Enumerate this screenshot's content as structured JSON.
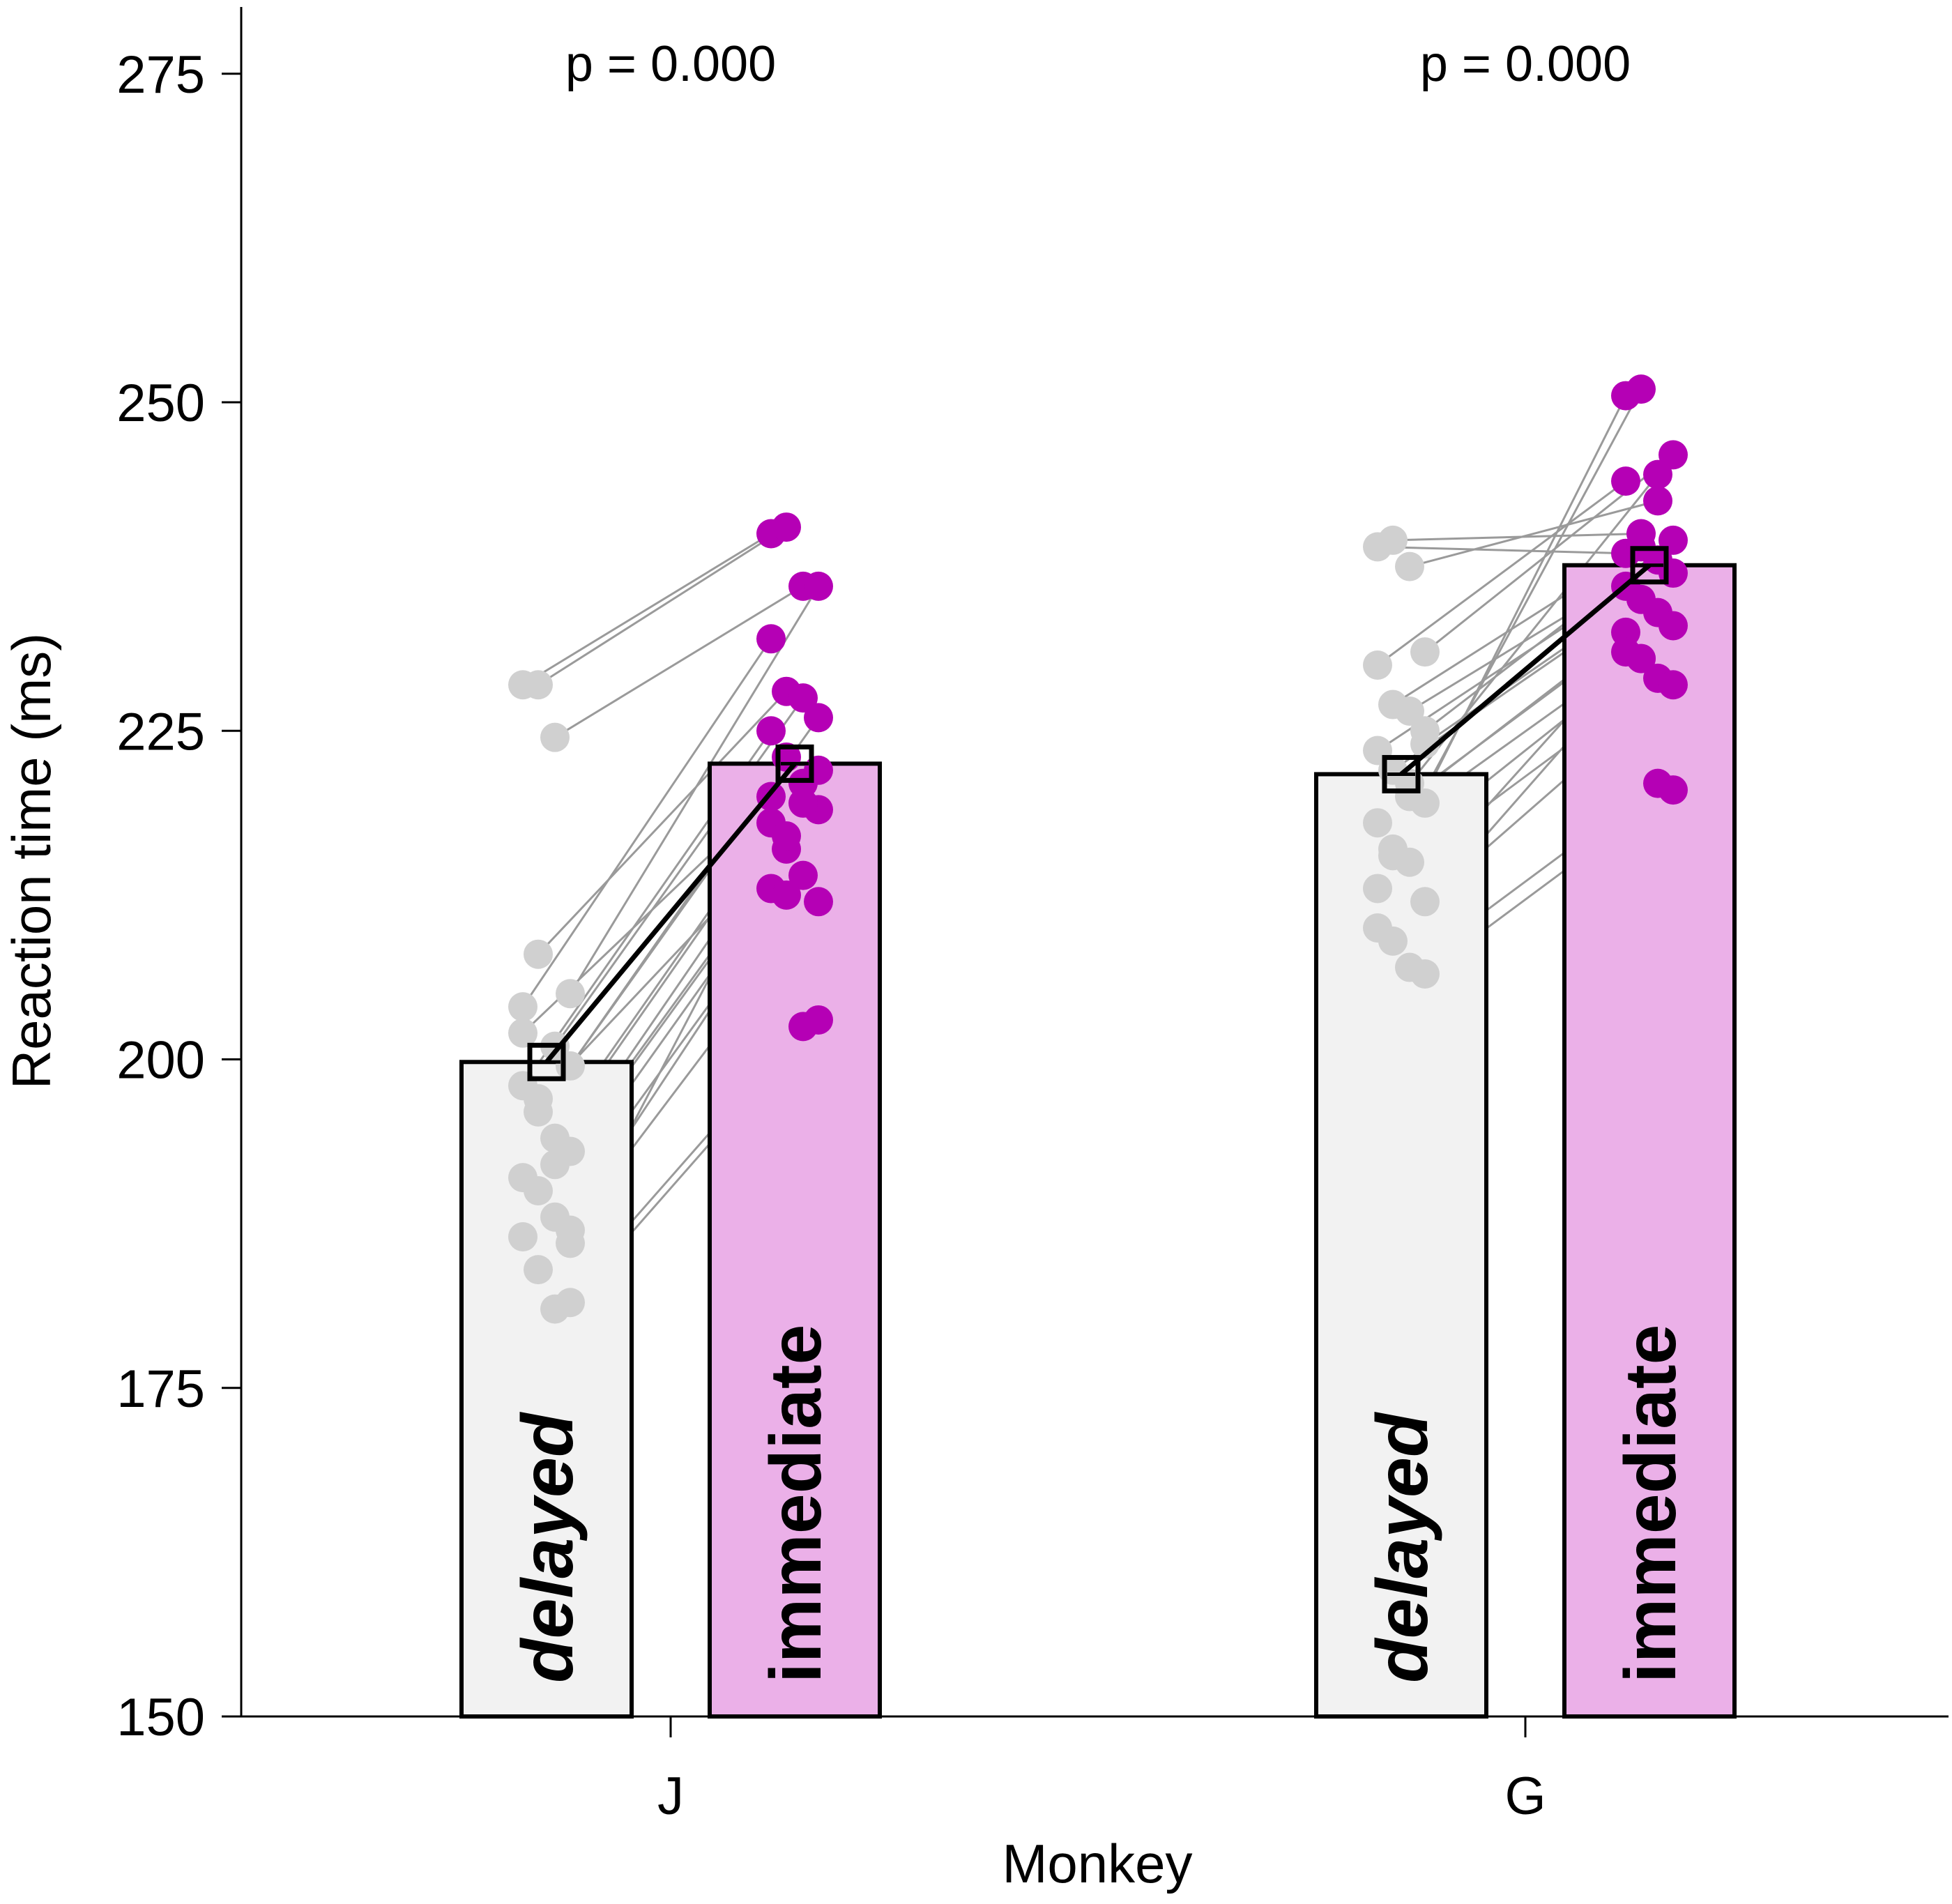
{
  "chart_data": {
    "type": "bar",
    "xlabel": "Monkey",
    "ylabel": "Reaction time (ms)",
    "ylim": [
      150,
      280
    ],
    "yticks": [
      150,
      175,
      200,
      225,
      250,
      275
    ],
    "ytick_labels": [
      "150",
      "175",
      "200",
      "225",
      "250",
      "275"
    ],
    "categories": [
      "J",
      "G"
    ],
    "series": [
      {
        "name": "delayed",
        "values": [
          199.8,
          221.7
        ],
        "color": "#f2f2f2",
        "point_color": "#d0d0d0",
        "label_style": "italic"
      },
      {
        "name": "immediate",
        "values": [
          222.5,
          237.6
        ],
        "color": "#ebb0e8",
        "point_color": "#b500b5",
        "label_style": "normal"
      }
    ],
    "annotations": [
      "p = 0.000",
      "p = 0.000"
    ],
    "sessions": [
      {
        "category": "J",
        "pairs": [
          [
            228.5,
            240.0
          ],
          [
            228.5,
            240.5
          ],
          [
            224.5,
            236.0
          ],
          [
            205.0,
            236.0
          ],
          [
            204.0,
            232.0
          ],
          [
            208.0,
            228.0
          ],
          [
            201.0,
            227.5
          ],
          [
            199.5,
            226.0
          ],
          [
            198.0,
            225.0
          ],
          [
            196.0,
            223.0
          ],
          [
            194.0,
            221.0
          ],
          [
            193.0,
            219.0
          ],
          [
            191.0,
            218.0
          ],
          [
            190.0,
            216.0
          ],
          [
            188.0,
            214.0
          ],
          [
            187.0,
            212.0
          ],
          [
            186.5,
            213.0
          ],
          [
            184.0,
            212.5
          ],
          [
            181.0,
            202.5
          ],
          [
            181.5,
            203.0
          ],
          [
            202.0,
            220.0
          ],
          [
            197.0,
            217.0
          ],
          [
            192.0,
            219.5
          ],
          [
            186.0,
            222.0
          ]
        ]
      },
      {
        "category": "G",
        "pairs": [
          [
            239.0,
            238.5
          ],
          [
            239.5,
            240.0
          ],
          [
            237.5,
            242.5
          ],
          [
            231.0,
            246.0
          ],
          [
            230.0,
            244.0
          ],
          [
            227.0,
            239.0
          ],
          [
            226.5,
            238.0
          ],
          [
            224.0,
            237.0
          ],
          [
            223.5,
            236.0
          ],
          [
            222.0,
            235.0
          ],
          [
            220.0,
            234.0
          ],
          [
            219.5,
            233.0
          ],
          [
            218.0,
            232.5
          ],
          [
            215.5,
            230.5
          ],
          [
            215.0,
            229.0
          ],
          [
            212.0,
            228.5
          ],
          [
            210.0,
            231.0
          ],
          [
            209.0,
            230.5
          ],
          [
            207.0,
            221.0
          ],
          [
            206.5,
            220.5
          ],
          [
            213.0,
            250.5
          ],
          [
            216.0,
            251.0
          ],
          [
            221.0,
            244.5
          ],
          [
            225.0,
            239.5
          ]
        ]
      }
    ]
  }
}
